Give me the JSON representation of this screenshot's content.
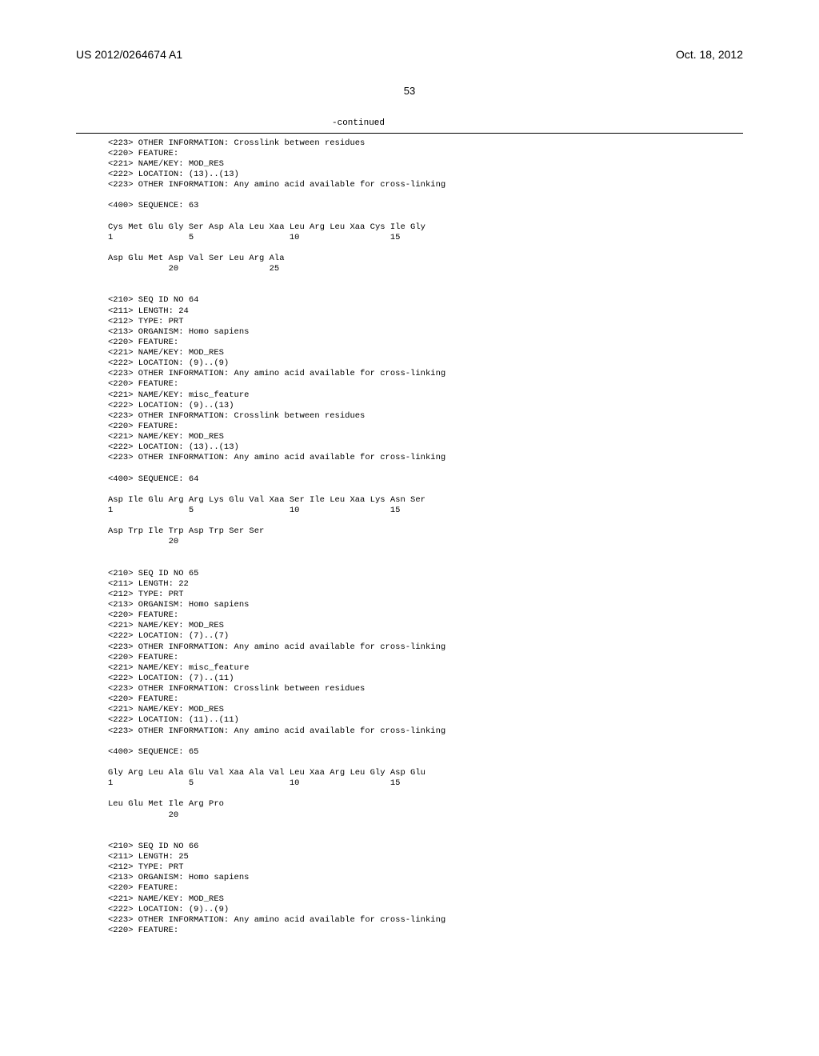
{
  "header": {
    "pub_number": "US 2012/0264674 A1",
    "pub_date": "Oct. 18, 2012"
  },
  "page_number": "53",
  "continued_label": "-continued",
  "sequences": {
    "top_continuation": "<223> OTHER INFORMATION: Crosslink between residues\n<220> FEATURE:\n<221> NAME/KEY: MOD_RES\n<222> LOCATION: (13)..(13)\n<223> OTHER INFORMATION: Any amino acid available for cross-linking\n\n<400> SEQUENCE: 63\n\nCys Met Glu Gly Ser Asp Ala Leu Xaa Leu Arg Leu Xaa Cys Ile Gly\n1               5                   10                  15\n\nAsp Glu Met Asp Val Ser Leu Arg Ala\n            20                  25\n\n",
    "seq64": "<210> SEQ ID NO 64\n<211> LENGTH: 24\n<212> TYPE: PRT\n<213> ORGANISM: Homo sapiens\n<220> FEATURE:\n<221> NAME/KEY: MOD_RES\n<222> LOCATION: (9)..(9)\n<223> OTHER INFORMATION: Any amino acid available for cross-linking\n<220> FEATURE:\n<221> NAME/KEY: misc_feature\n<222> LOCATION: (9)..(13)\n<223> OTHER INFORMATION: Crosslink between residues\n<220> FEATURE:\n<221> NAME/KEY: MOD_RES\n<222> LOCATION: (13)..(13)\n<223> OTHER INFORMATION: Any amino acid available for cross-linking\n\n<400> SEQUENCE: 64\n\nAsp Ile Glu Arg Arg Lys Glu Val Xaa Ser Ile Leu Xaa Lys Asn Ser\n1               5                   10                  15\n\nAsp Trp Ile Trp Asp Trp Ser Ser\n            20\n\n",
    "seq65": "<210> SEQ ID NO 65\n<211> LENGTH: 22\n<212> TYPE: PRT\n<213> ORGANISM: Homo sapiens\n<220> FEATURE:\n<221> NAME/KEY: MOD_RES\n<222> LOCATION: (7)..(7)\n<223> OTHER INFORMATION: Any amino acid available for cross-linking\n<220> FEATURE:\n<221> NAME/KEY: misc_feature\n<222> LOCATION: (7)..(11)\n<223> OTHER INFORMATION: Crosslink between residues\n<220> FEATURE:\n<221> NAME/KEY: MOD_RES\n<222> LOCATION: (11)..(11)\n<223> OTHER INFORMATION: Any amino acid available for cross-linking\n\n<400> SEQUENCE: 65\n\nGly Arg Leu Ala Glu Val Xaa Ala Val Leu Xaa Arg Leu Gly Asp Glu\n1               5                   10                  15\n\nLeu Glu Met Ile Arg Pro\n            20\n\n",
    "seq66": "<210> SEQ ID NO 66\n<211> LENGTH: 25\n<212> TYPE: PRT\n<213> ORGANISM: Homo sapiens\n<220> FEATURE:\n<221> NAME/KEY: MOD_RES\n<222> LOCATION: (9)..(9)\n<223> OTHER INFORMATION: Any amino acid available for cross-linking\n<220> FEATURE:"
  }
}
